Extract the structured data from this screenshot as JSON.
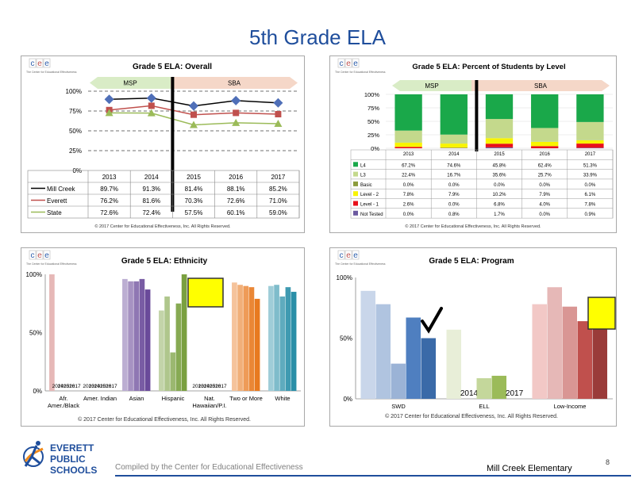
{
  "slide": {
    "title": "5th Grade ELA",
    "compiled_by": "Compiled by the Center for Educational Effectiveness",
    "school": "Mill Creek Elementary",
    "page_number": "8"
  },
  "logo": {
    "cee_letters": [
      "c",
      "e",
      "e"
    ],
    "cee_caption": "The Center for Educational Effectiveness",
    "district_lines": [
      "EVERETT",
      "PUBLIC",
      "SCHOOLS"
    ]
  },
  "copyright": "© 2017 Center for Educational Effectiveness, Inc. All Rights Reserved.",
  "colors": {
    "title_blue": "#1f4e9c",
    "mill_creek": "#1f3e8c",
    "everett": "#c0504d",
    "state": "#9bbb59",
    "l4": "#1aa84a",
    "l3": "#c4d98c",
    "basic": "#8c9c3c",
    "level2": "#f8f400",
    "level1": "#e8101a",
    "not_tested": "#6c5aa0",
    "msp_band": "#d9ecc6",
    "sba_band": "#f5d7c8",
    "callout_yellow": "#ffff00"
  },
  "chart_data": [
    {
      "type": "line",
      "title": "Grade 5 ELA: Overall",
      "categories": [
        "2013",
        "2014",
        "2015",
        "2016",
        "2017"
      ],
      "ylim": [
        0,
        100
      ],
      "yticks": [
        "0%",
        "25%",
        "50%",
        "75%",
        "100%"
      ],
      "bands": [
        "MSP",
        "SBA"
      ],
      "series": [
        {
          "name": "Mill Creek",
          "values": [
            89.7,
            91.3,
            81.4,
            88.1,
            85.2
          ],
          "labels": [
            "89.7%",
            "91.3%",
            "81.4%",
            "88.1%",
            "85.2%"
          ]
        },
        {
          "name": "Everett",
          "values": [
            76.2,
            81.6,
            70.3,
            72.6,
            71.0
          ],
          "labels": [
            "76.2%",
            "81.6%",
            "70.3%",
            "72.6%",
            "71.0%"
          ]
        },
        {
          "name": "State",
          "values": [
            72.6,
            72.4,
            57.5,
            60.1,
            59.0
          ],
          "labels": [
            "72.6%",
            "72.4%",
            "57.5%",
            "60.1%",
            "59.0%"
          ]
        }
      ]
    },
    {
      "type": "bar",
      "stacked": true,
      "title": "Grade 5 ELA: Percent of Students by Level",
      "categories": [
        "2013",
        "2014",
        "2015",
        "2016",
        "2017"
      ],
      "ylim": [
        0,
        100
      ],
      "yticks": [
        "0%",
        "25%",
        "50%",
        "75%",
        "100%"
      ],
      "bands": [
        "MSP",
        "SBA"
      ],
      "series": [
        {
          "name": "L4",
          "values": [
            67.2,
            74.6,
            45.8,
            62.4,
            51.3
          ],
          "labels": [
            "67.2%",
            "74.6%",
            "45.8%",
            "62.4%",
            "51.3%"
          ]
        },
        {
          "name": "L3",
          "values": [
            22.4,
            16.7,
            35.6,
            25.7,
            33.9
          ],
          "labels": [
            "22.4%",
            "16.7%",
            "35.6%",
            "25.7%",
            "33.9%"
          ]
        },
        {
          "name": "Basic",
          "values": [
            0.0,
            0.0,
            0.0,
            0.0,
            0.0
          ],
          "labels": [
            "0.0%",
            "0.0%",
            "0.0%",
            "0.0%",
            "0.0%"
          ]
        },
        {
          "name": "Level - 2",
          "values": [
            7.8,
            7.9,
            10.2,
            7.9,
            6.1
          ],
          "labels": [
            "7.8%",
            "7.9%",
            "10.2%",
            "7.9%",
            "6.1%"
          ]
        },
        {
          "name": "Level - 1",
          "values": [
            2.6,
            0.0,
            6.8,
            4.0,
            7.8
          ],
          "labels": [
            "2.6%",
            "0.0%",
            "6.8%",
            "4.0%",
            "7.8%"
          ]
        },
        {
          "name": "Not Tested",
          "values": [
            0.0,
            0.8,
            1.7,
            0.0,
            0.9
          ],
          "labels": [
            "0.0%",
            "0.8%",
            "1.7%",
            "0.0%",
            "0.9%"
          ]
        }
      ]
    },
    {
      "type": "bar",
      "title": "Grade 5 ELA: Ethnicity",
      "categories": [
        "Afr. Amer./Black",
        "Amer. Indian",
        "Asian",
        "Hispanic",
        "Nat. Hawaiian/P.I.",
        "Two or More",
        "White"
      ],
      "category_lines": [
        [
          "Afr.",
          "Amer./Black"
        ],
        [
          "Amer. Indian"
        ],
        [
          "Asian"
        ],
        [
          "Hispanic"
        ],
        [
          "Nat.",
          "Hawaiian/P.I."
        ],
        [
          "Two or More"
        ],
        [
          "White"
        ]
      ],
      "years": [
        "2013",
        "2014",
        "2015",
        "2016",
        "2017"
      ],
      "ylim": [
        0,
        100
      ],
      "yticks": [
        "0%",
        "50%",
        "100%"
      ],
      "values": [
        [
          100,
          null,
          null,
          null,
          null
        ],
        [
          null,
          null,
          null,
          null,
          null
        ],
        [
          96,
          94,
          94,
          96,
          87
        ],
        [
          69,
          81,
          33,
          75,
          100
        ],
        [
          null,
          null,
          null,
          null,
          null
        ],
        [
          93,
          91,
          90,
          89,
          79
        ],
        [
          90,
          91,
          81,
          89,
          85
        ]
      ]
    },
    {
      "type": "bar",
      "title": "Grade 5 ELA: Program",
      "categories": [
        "SWD",
        "ELL",
        "Low-Income"
      ],
      "years": [
        "2013",
        "2014",
        "2015",
        "2016",
        "2017"
      ],
      "ylim": [
        0,
        100
      ],
      "yticks": [
        "0%",
        "50%",
        "100%"
      ],
      "values": [
        [
          89,
          78,
          29,
          67,
          50
        ],
        [
          57,
          null,
          17,
          19,
          null
        ],
        [
          78,
          92,
          76,
          64,
          69
        ]
      ]
    }
  ]
}
